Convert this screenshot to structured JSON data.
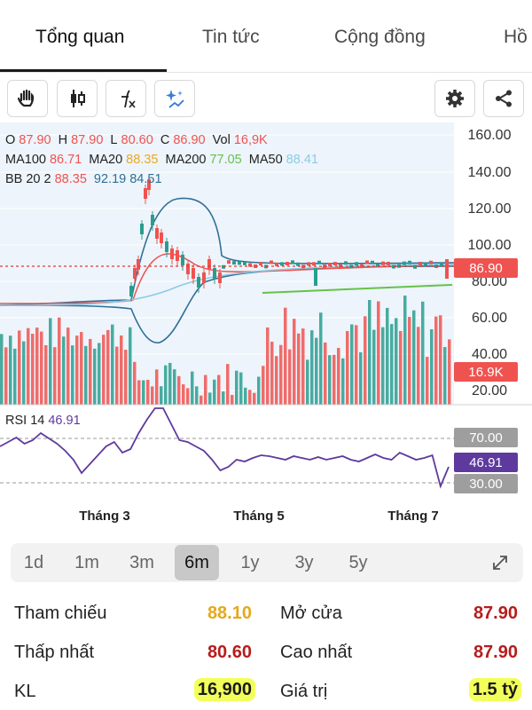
{
  "tabs": [
    {
      "label": "Tổng quan",
      "active": true
    },
    {
      "label": "Tin tức",
      "active": false
    },
    {
      "label": "Cộng đồng",
      "active": false
    },
    {
      "label": "Hồ",
      "active": false
    }
  ],
  "toolbar": {
    "left_icons": [
      "hand-icon",
      "candlestick-icon",
      "function-icon",
      "ai-sparkle-icon"
    ],
    "right_icons": [
      "gear-icon",
      "share-icon"
    ]
  },
  "ohlc": {
    "o_label": "O",
    "o": "87.90",
    "h_label": "H",
    "h": "87.90",
    "l_label": "L",
    "l": "80.60",
    "c_label": "C",
    "c": "86.90",
    "vol_label": "Vol",
    "vol": "16,9K"
  },
  "ma": {
    "ma100_label": "MA100",
    "ma100": "86.71",
    "ma20_label": "MA20",
    "ma20": "88.35",
    "ma200_label": "MA200",
    "ma200": "77.05",
    "ma50_label": "MA50",
    "ma50": "88.41"
  },
  "bb": {
    "label": "BB 20 2",
    "v1": "88.35",
    "v2": "92.19",
    "v3": "84.51"
  },
  "price_axis": [
    "160.00",
    "140.00",
    "120.00",
    "100.00",
    "80.00",
    "60.00",
    "40.00",
    "20.00"
  ],
  "price_badge": "86.90",
  "vol_badge": "16.9K",
  "rsi": {
    "label": "RSI 14",
    "value": "46.91",
    "upper": "70.00",
    "lower": "30.00"
  },
  "months": [
    "Tháng 3",
    "Tháng 5",
    "Tháng 7"
  ],
  "colors": {
    "up": "#2a9d8f",
    "down": "#ef5350",
    "ma20": "#e9a825",
    "ma200": "#66c24a",
    "ma50": "#8ecae6",
    "bb": "#2f6f96",
    "rsi": "#5e3a9e"
  },
  "ranges": [
    {
      "label": "1d",
      "active": false
    },
    {
      "label": "1m",
      "active": false
    },
    {
      "label": "3m",
      "active": false
    },
    {
      "label": "6m",
      "active": true
    },
    {
      "label": "1y",
      "active": false
    },
    {
      "label": "3y",
      "active": false
    },
    {
      "label": "5y",
      "active": false
    }
  ],
  "stats": {
    "ref_label": "Tham chiếu",
    "ref": "88.10",
    "open_label": "Mở cửa",
    "open": "87.90",
    "low_label": "Thấp nhất",
    "low": "80.60",
    "high_label": "Cao nhất",
    "high": "87.90",
    "vol_label": "KL",
    "vol": "16,900",
    "value_label": "Giá trị",
    "value": "1.5 tỷ"
  }
}
